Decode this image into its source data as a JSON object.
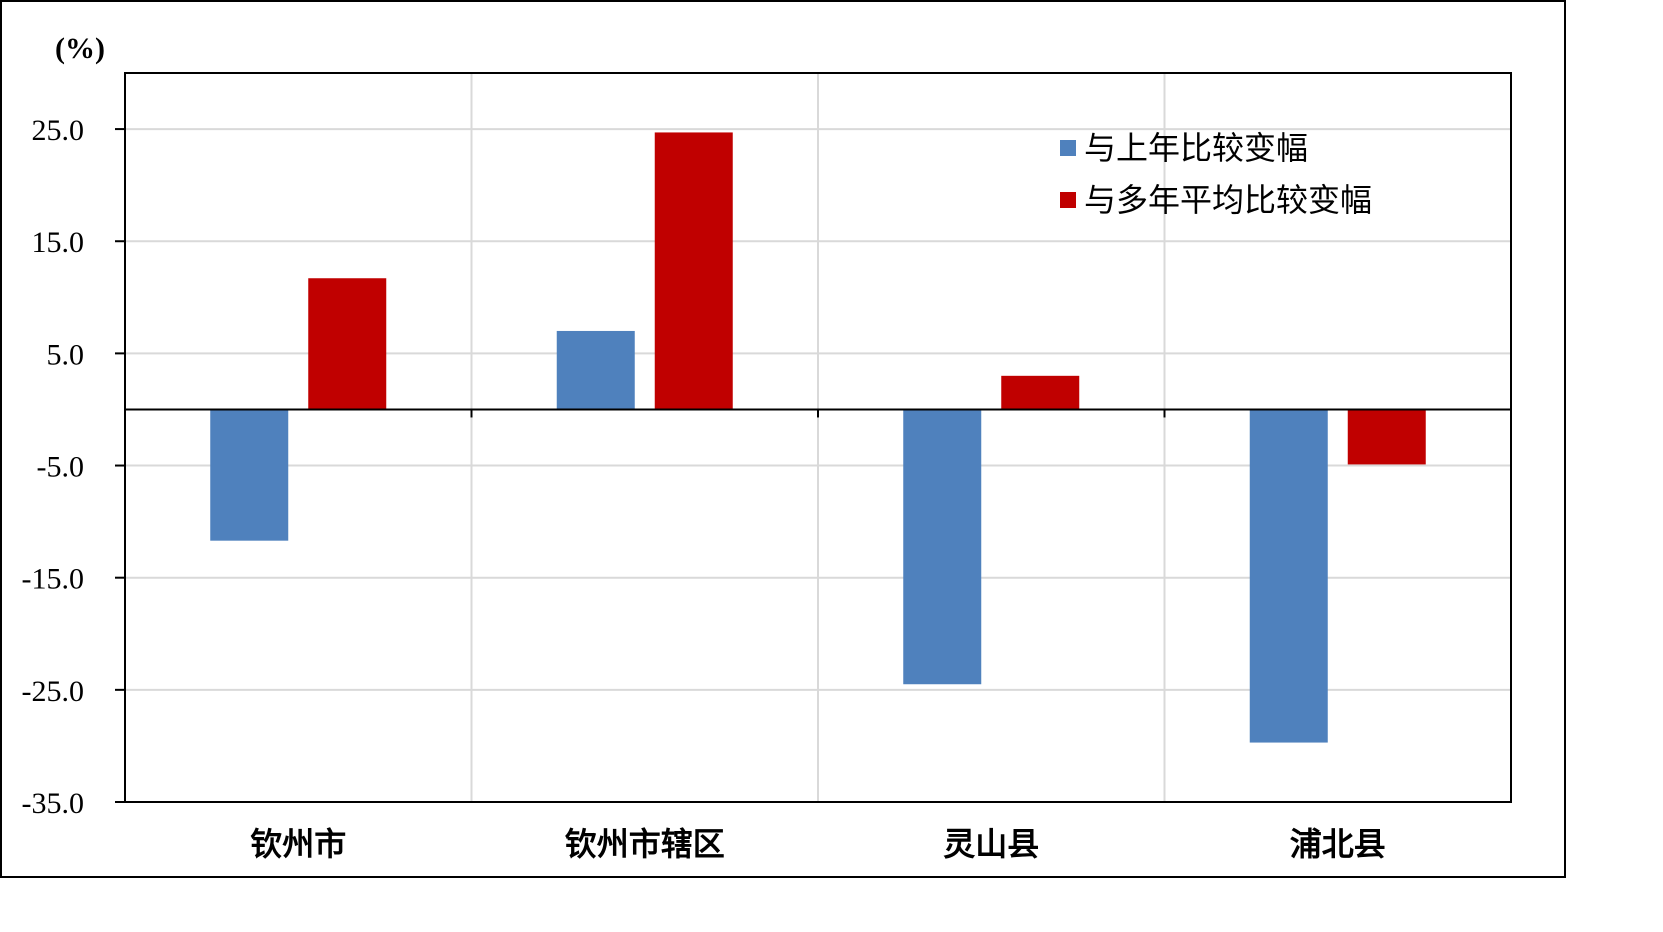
{
  "chart_data": {
    "type": "bar",
    "title": "",
    "unit_label": "(%)",
    "xlabel": "",
    "ylabel": "",
    "categories": [
      "钦州市",
      "钦州市辖区",
      "灵山县",
      "浦北县"
    ],
    "series": [
      {
        "name": "与上年比较变幅",
        "color": "#4F81BD",
        "values": [
          -11.7,
          7.0,
          -24.5,
          -29.7
        ]
      },
      {
        "name": "与多年平均比较变幅",
        "color": "#C00000",
        "values": [
          11.7,
          24.7,
          3.0,
          -4.9
        ]
      }
    ],
    "ylim": [
      -35,
      30
    ],
    "yticks": [
      25.0,
      15.0,
      5.0,
      -5.0,
      -15.0,
      -25.0,
      -35.0
    ],
    "ytick_labels": [
      "25.0",
      "15.0",
      "5.0",
      "-5.0",
      "-15.0",
      "-25.0",
      "-35.0"
    ],
    "grid": true,
    "legend_position": "top-right"
  }
}
